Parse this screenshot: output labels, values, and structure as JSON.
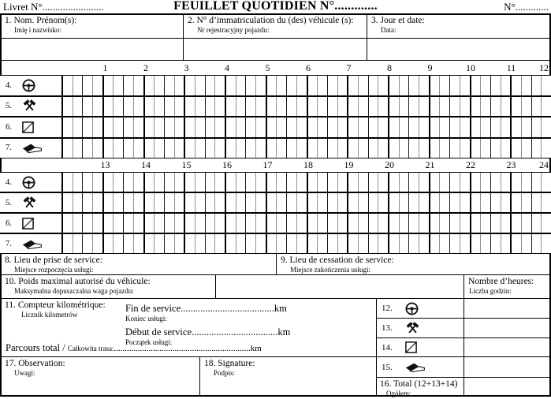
{
  "header": {
    "livret": "Livret N°........................",
    "title": "FEUILLET QUOTIDIEN N°.............",
    "sheet_no": "N°............."
  },
  "info": [
    {
      "label": "1. Nom. Prénom(s):",
      "sublabel": "Imię i nazwisko:"
    },
    {
      "label": "2. N° d’immatriculation du (des) véhicule (s):",
      "sublabel": "Nr rejestracyjny pojazdu:"
    },
    {
      "label": "3. Jour et date:",
      "sublabel": "Data:"
    }
  ],
  "timegrid": {
    "hours_top": [
      "1",
      "2",
      "3",
      "4",
      "5",
      "6",
      "7",
      "8",
      "9",
      "10",
      "11",
      "12"
    ],
    "hours_bottom": [
      "13",
      "14",
      "15",
      "16",
      "17",
      "18",
      "19",
      "20",
      "21",
      "22",
      "23",
      "24"
    ],
    "quarters_per_hour": 4,
    "rows": [
      {
        "num": "4.",
        "icon": "steering-wheel"
      },
      {
        "num": "5.",
        "icon": "crossed-hammers"
      },
      {
        "num": "6.",
        "icon": "availability-square"
      },
      {
        "num": "7.",
        "icon": "bed-rest"
      }
    ]
  },
  "service": {
    "start": {
      "label": "8. Lieu de prise de service:",
      "sublabel": "Miejsce rozpoczęcia usługi:"
    },
    "end": {
      "label": "9. Lieu de cessation de service:",
      "sublabel": "Miejsce zakończenia usługi:"
    }
  },
  "weight": {
    "label": "10. Poids maximal autorisé du véhicule:",
    "sublabel": "Maksymalna dopuszczalna waga pojazdu:"
  },
  "hours_count": {
    "label": "Nombre d’heures:",
    "sublabel": "Liczba godzin:"
  },
  "odometer": {
    "label": "11. Compteur kilométrique:",
    "sublabel": "Licznik kilometrów",
    "end": {
      "label": "Fin de service......................................km",
      "sublabel": "Koniec usługi:"
    },
    "start": {
      "label": "Début de service...................................km",
      "sublabel": "Początek usługi:"
    },
    "total": {
      "label_fr": "Parcours total / ",
      "label_pl": "Całkowita trasa:",
      "dots": "...............................................................km"
    }
  },
  "totals": {
    "rows": [
      {
        "num": "12.",
        "icon": "steering-wheel"
      },
      {
        "num": "13.",
        "icon": "crossed-hammers"
      },
      {
        "num": "14.",
        "icon": "availability-square"
      },
      {
        "num": "15.",
        "icon": "bed-rest"
      },
      {
        "num": "16.",
        "label": "16. Total (12+13+14)",
        "sublabel": "Ogółem:"
      }
    ]
  },
  "observation": {
    "label": "17. Observation:",
    "sublabel": "Uwagi:"
  },
  "signature": {
    "label": "18. Signature:",
    "sublabel": "Podpis:"
  }
}
